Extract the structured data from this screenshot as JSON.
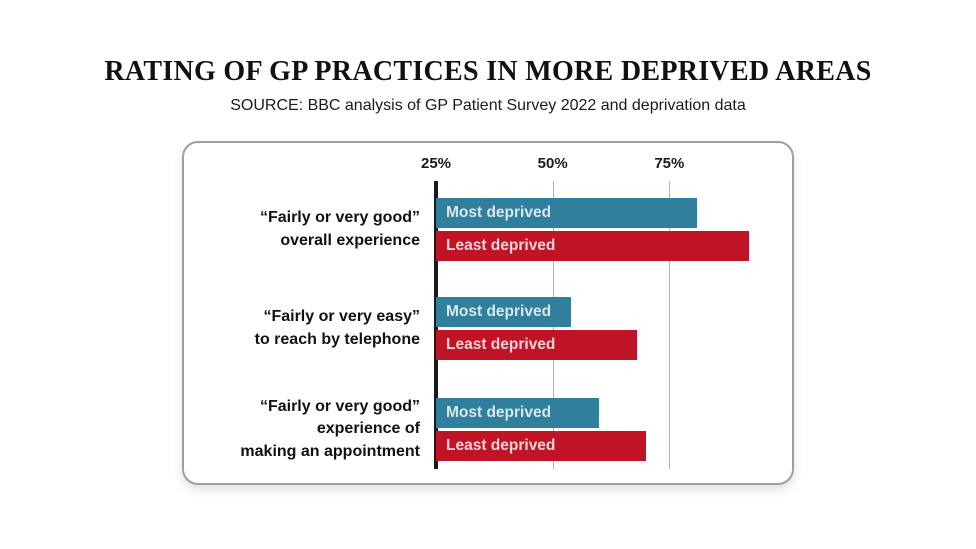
{
  "header": {
    "title": "RATING OF GP PRACTICES IN MORE DEPRIVED AREAS",
    "subtitle": "SOURCE: BBC analysis of GP Patient Survey 2022 and deprivation data"
  },
  "chart_data": {
    "type": "bar",
    "orientation": "horizontal",
    "title": "RATING OF GP PRACTICES IN MORE DEPRIVED AREAS",
    "subtitle": "SOURCE: BBC analysis of GP Patient Survey 2022 and deprivation data",
    "axis": {
      "unit": "%",
      "min": 25,
      "max": 100,
      "ticks": [
        25,
        50,
        75
      ],
      "tick_labels": [
        "25%",
        "50%",
        "75%"
      ],
      "grid": true
    },
    "categories": [
      "“Fairly or very good”\noverall experience",
      "“Fairly or very easy”\nto reach by telephone",
      "“Fairly or very good”\nexperience of\nmaking an appointment"
    ],
    "series": [
      {
        "name": "Most deprived",
        "color": "#2f7f9d",
        "values": [
          81,
          54,
          60
        ]
      },
      {
        "name": "Least deprived",
        "color": "#c01325",
        "values": [
          92,
          68,
          70
        ]
      }
    ],
    "legend_position": "inside-bars"
  },
  "colors": {
    "most_deprived": "#2f7f9d",
    "least_deprived": "#c01325",
    "axis_line": "#1a1a1a",
    "gridline": "#b4b4b4",
    "card_border": "#9f9f9f",
    "bar_text": "rgba(255,255,255,0.82)"
  }
}
